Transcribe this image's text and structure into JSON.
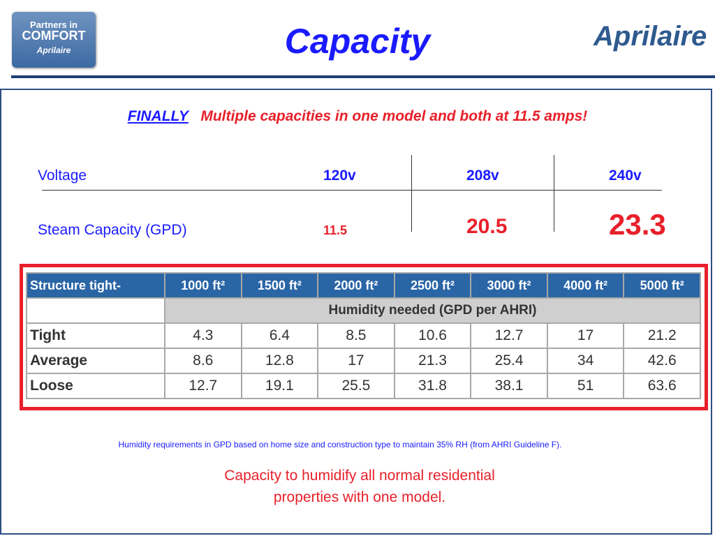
{
  "header": {
    "logo_left": [
      "Partners in",
      "COMFORT",
      "Aprilaire"
    ],
    "title": "Capacity",
    "logo_right": "Aprilaire"
  },
  "headline": {
    "lead": "FINALLY",
    "text": "Multiple capacities in one model  and both at 11.5 amps!"
  },
  "voltage_table": {
    "rows": [
      [
        "Voltage",
        "120v",
        "208v",
        "240v"
      ],
      [
        "Steam Capacity (GPD)",
        "11.5",
        "20.5",
        "23.3"
      ]
    ]
  },
  "humidity_table": {
    "header": [
      "Structure tight-",
      "1000 ft²",
      "1500 ft²",
      "2000 ft²",
      "2500 ft²",
      "3000 ft²",
      "4000 ft²",
      "5000 ft²"
    ],
    "subheader": "Humidity needed (GPD per AHRI)",
    "rows": [
      [
        "Tight",
        "4.3",
        "6.4",
        "8.5",
        "10.6",
        "12.7",
        "17",
        "21.2"
      ],
      [
        "Average",
        "8.6",
        "12.8",
        "17",
        "21.3",
        "25.4",
        "34",
        "42.6"
      ],
      [
        "Loose",
        "12.7",
        "19.1",
        "25.5",
        "31.8",
        "38.1",
        "51",
        "63.6"
      ]
    ]
  },
  "footnote": "Humidity requirements in GPD based on home size and construction type to maintain 35% RH (from AHRI Guideline F).",
  "conclusion": [
    "Capacity to humidify all normal residential",
    "properties with one model."
  ]
}
